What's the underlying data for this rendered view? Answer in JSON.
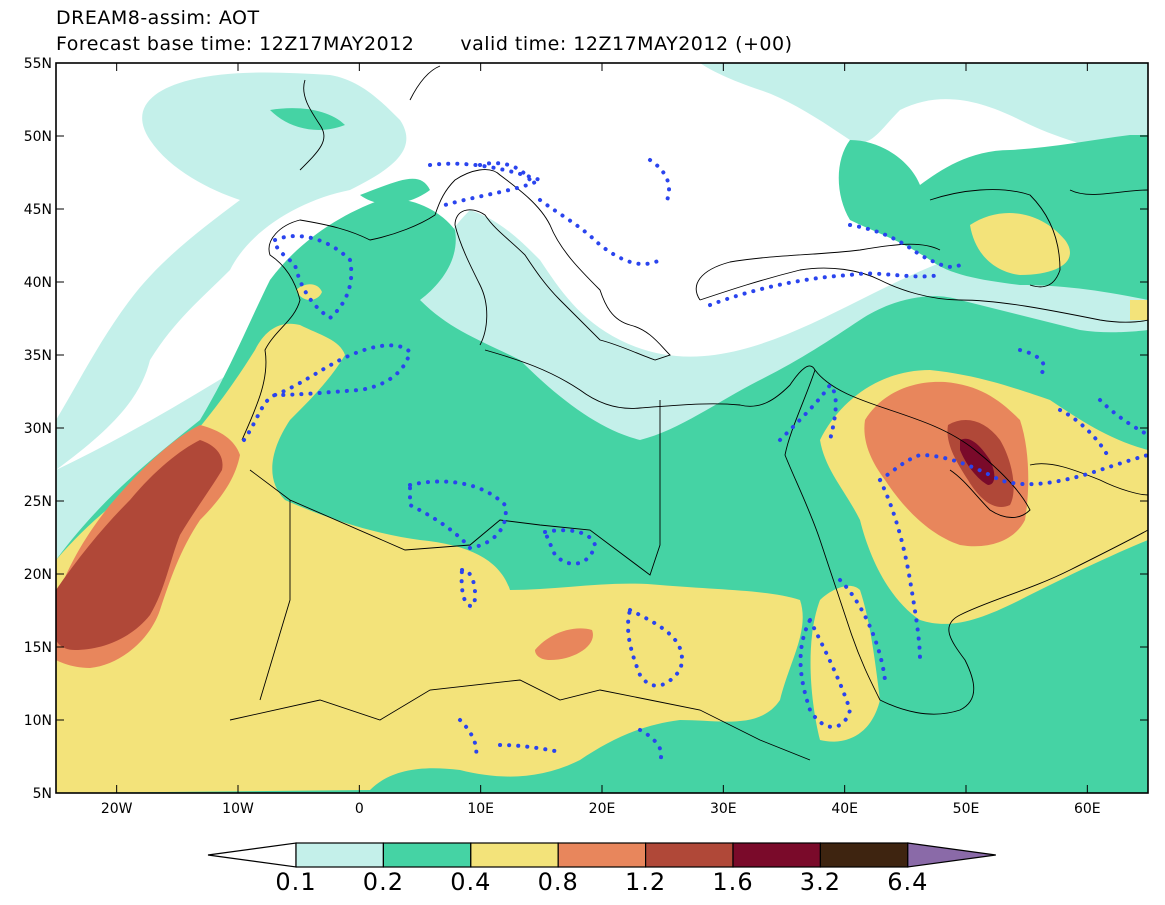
{
  "header": {
    "line1": "DREAM8-assim: AOT",
    "line2_left": "Forecast base time: 12Z17MAY2012",
    "line2_right": "valid time: 12Z17MAY2012 (+00)"
  },
  "map": {
    "lon_range": [
      -25,
      65
    ],
    "lat_range": [
      5,
      55
    ],
    "lat_labels": [
      "55N",
      "50N",
      "45N",
      "40N",
      "35N",
      "30N",
      "25N",
      "20N",
      "15N",
      "10N",
      "5N"
    ],
    "lon_labels": [
      "20W",
      "10W",
      "0",
      "10E",
      "20E",
      "30E",
      "40E",
      "50E",
      "60E"
    ]
  },
  "colorbar": {
    "levels": [
      "0.1",
      "0.2",
      "0.4",
      "0.8",
      "1.2",
      "1.6",
      "3.2",
      "6.4"
    ],
    "colors": [
      "#c4f0ea",
      "#45d3a4",
      "#f3e37a",
      "#e8865c",
      "#b04838",
      "#7a0a2a",
      "#3e2410",
      "#8a6aa8"
    ]
  }
}
